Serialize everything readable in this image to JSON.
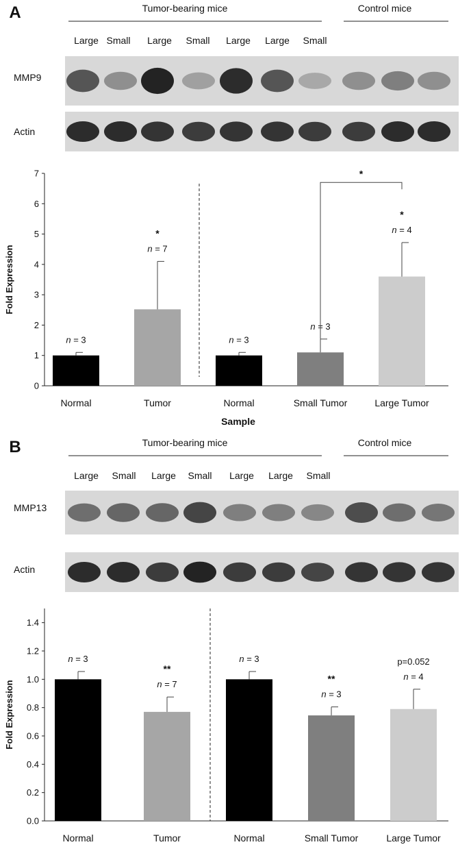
{
  "panels": [
    {
      "letter": "A",
      "group_headers": {
        "tumor": "Tumor-bearing mice",
        "control": "Control mice"
      },
      "lane_labels": [
        "Large",
        "Small",
        "Large",
        "Small",
        "Large",
        "Large",
        "Small"
      ],
      "blot_rows": [
        {
          "label": "MMP9",
          "intensities": [
            0.7,
            0.35,
            1.0,
            0.25,
            0.95,
            0.7,
            0.2,
            0.35,
            0.45,
            0.35
          ]
        },
        {
          "label": "Actin",
          "intensities": [
            0.95,
            0.95,
            0.9,
            0.85,
            0.9,
            0.9,
            0.85,
            0.85,
            0.95,
            0.95
          ]
        }
      ]
    },
    {
      "letter": "B",
      "group_headers": {
        "tumor": "Tumor-bearing mice",
        "control": "Control mice"
      },
      "lane_labels": [
        "Large",
        "Small",
        "Large",
        "Small",
        "Large",
        "Large",
        "Small"
      ],
      "blot_rows": [
        {
          "label": "MMP13",
          "intensities": [
            0.55,
            0.6,
            0.6,
            0.8,
            0.45,
            0.45,
            0.4,
            0.75,
            0.55,
            0.5
          ]
        },
        {
          "label": "Actin",
          "intensities": [
            0.95,
            0.95,
            0.85,
            1.0,
            0.85,
            0.85,
            0.8,
            0.9,
            0.9,
            0.9
          ]
        }
      ]
    }
  ],
  "chart_data": [
    {
      "type": "bar",
      "panel": "A",
      "categories": [
        "Normal",
        "Tumor",
        "Normal",
        "Small Tumor",
        "Large Tumor"
      ],
      "values": [
        1.0,
        2.52,
        1.0,
        1.1,
        3.6
      ],
      "errors": [
        0.1,
        1.58,
        0.1,
        0.44,
        1.12
      ],
      "colors": [
        "#000000",
        "#a6a6a6",
        "#000000",
        "#7f7f7f",
        "#cccccc"
      ],
      "annotations": [
        "n = 3",
        "n = 7",
        "n = 3",
        "n = 3",
        "n = 4"
      ],
      "significance": [
        "",
        "*",
        "",
        "",
        "*"
      ],
      "bracket": {
        "from": 3,
        "to": 4,
        "label": "*",
        "y": 6.7
      },
      "xlabel": "Sample",
      "ylabel": "Fold Expression",
      "ylim": [
        0,
        7
      ],
      "yticks": [
        "0",
        "1",
        "2",
        "3",
        "4",
        "5",
        "6",
        "7"
      ],
      "divider_after": 1
    },
    {
      "type": "bar",
      "panel": "B",
      "categories": [
        "Normal",
        "Tumor",
        "Normal",
        "Small Tumor",
        "Large Tumor"
      ],
      "values": [
        1.0,
        0.77,
        1.0,
        0.745,
        0.79
      ],
      "errors": [
        0.055,
        0.105,
        0.055,
        0.06,
        0.14
      ],
      "colors": [
        "#000000",
        "#a6a6a6",
        "#000000",
        "#7f7f7f",
        "#cccccc"
      ],
      "annotations": [
        "n = 3",
        "n = 7",
        "n = 3",
        "n = 3",
        "n = 4"
      ],
      "significance": [
        "",
        "**",
        "",
        "**",
        "p=0.052"
      ],
      "xlabel": "",
      "ylabel": "Fold Expression",
      "ylim": [
        0,
        1.5
      ],
      "yticks": [
        "0.0",
        "0.2",
        "0.4",
        "0.6",
        "0.8",
        "1.0",
        "1.2",
        "1.4"
      ],
      "divider_after": 1
    }
  ]
}
